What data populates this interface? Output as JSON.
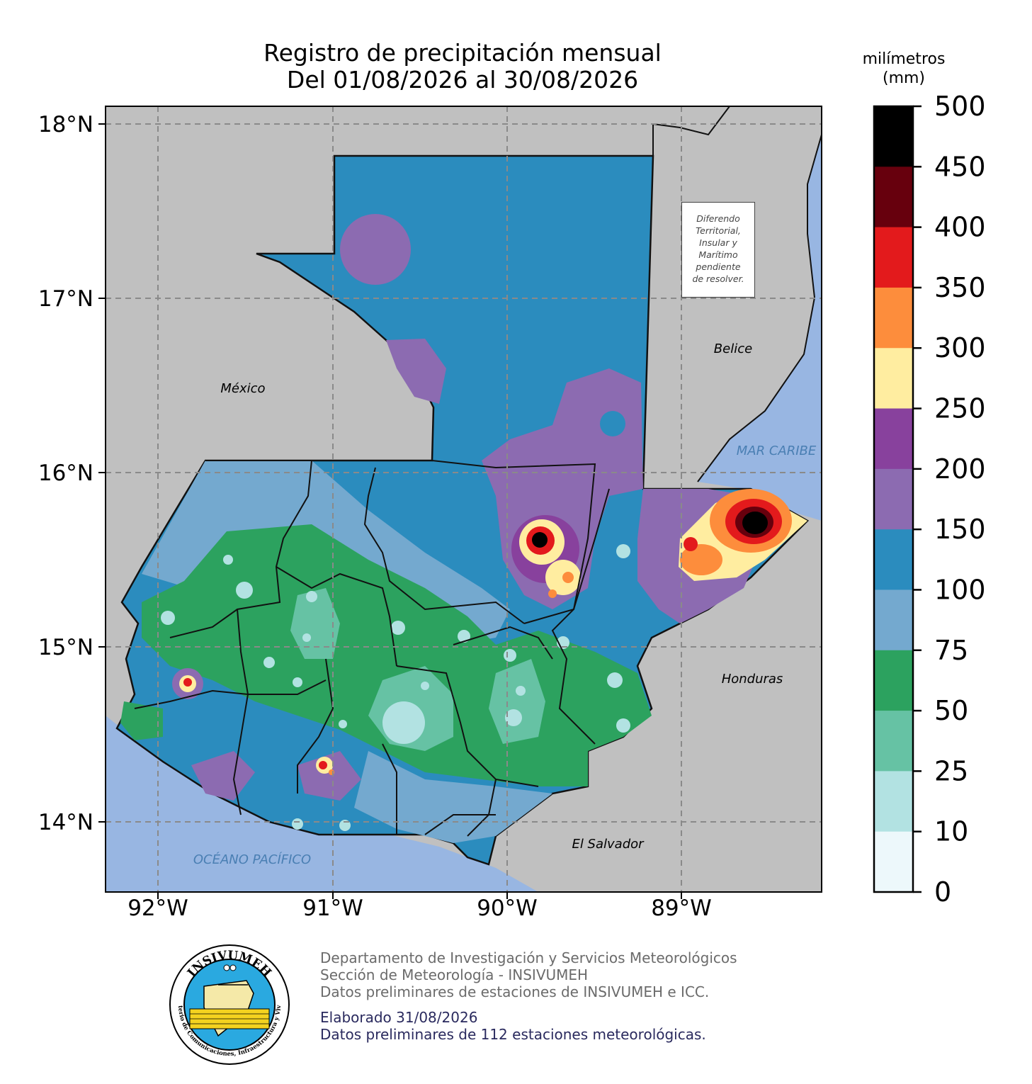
{
  "title": {
    "line1": "Registro de precipitación mensual",
    "line2": "Del 01/08/2026 al 30/08/2026"
  },
  "colorbar": {
    "title_line1": "milímetros",
    "title_line2": "(mm)",
    "ticks": [
      "500",
      "450",
      "400",
      "350",
      "300",
      "250",
      "200",
      "150",
      "100",
      "75",
      "50",
      "25",
      "10",
      "0"
    ],
    "colors": [
      "#000000",
      "#67000d",
      "#e31a1c",
      "#fd8d3c",
      "#ffeda0",
      "#88419d",
      "#8c6bb1",
      "#2b8cbe",
      "#74a9cf",
      "#2ca25f",
      "#66c2a4",
      "#b2e2e2",
      "#edf8fb"
    ]
  },
  "map": {
    "lat_labels": [
      "18°N",
      "17°N",
      "16°N",
      "15°N",
      "14°N"
    ],
    "lon_labels": [
      "92°W",
      "91°W",
      "90°W",
      "89°W"
    ],
    "countries": {
      "mexico": "México",
      "belize": "Belice",
      "honduras": "Honduras",
      "el_salvador": "El Salvador"
    },
    "seas": {
      "caribbean": "MAR CARIBE",
      "pacific": "OCÉANO PACÍFICO"
    },
    "note_lines": [
      "Diferendo",
      "Territorial,",
      "Insular y",
      "Marítimo",
      "pendiente",
      "de resolver."
    ],
    "colors": {
      "land": "#c0c0c0",
      "water": "#98b6e2",
      "grid": "#8a8a8a"
    }
  },
  "footer": {
    "line1": "Departamento de Investigación y Servicios Meteorológicos",
    "line2": "Sección de Meteorología - INSIVUMEH",
    "line3": "Datos preliminares de estaciones de INSIVUMEH e ICC.",
    "line4": "Elaborado 31/08/2026",
    "line5": "Datos preliminares de 112 estaciones meteorológicas."
  },
  "logo": {
    "top_text": "INSIVUMEH",
    "ring_text": "Ministerio de Comunicaciones, Infraestructura y Vivienda"
  }
}
